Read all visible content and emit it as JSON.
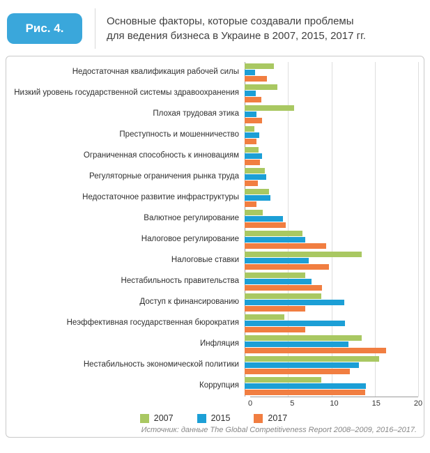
{
  "header": {
    "badge": "Рис. 4.",
    "title_line1": "Основные факторы, которые создавали проблемы",
    "title_line2": "для ведения бизнеса в Украине в 2007, 2015, 2017 гг."
  },
  "footer": {
    "source": "Источник: данные The Global Competitiveness Report 2008–2009, 2016–2017."
  },
  "colors": {
    "badge_blue": "#3aa7db",
    "gridline": "#dedede",
    "axis": "#9b9b9b"
  },
  "chart_data": {
    "type": "bar",
    "orientation": "horizontal",
    "title": "Основные факторы, которые создавали проблемы для ведения бизнеса в Украине в 2007, 2015, 2017 гг.",
    "categories": [
      "Недостаточная квалификация рабочей силы",
      "Низкий уровень государственной системы здравоохранения",
      "Плохая трудовая этика",
      "Преступность и мошенничество",
      "Ограниченная способность к инновациям",
      "Регуляторные ограничения рынка труда",
      "Недостаточное развитие инфраструктуры",
      "Валютное регулирование",
      "Налоговое регулирование",
      "Налоговые ставки",
      "Нестабильность правительства",
      "Доступ к финансированию",
      "Неэффективная государственная бюрократия",
      "Инфляция",
      "Нестабильность экономической политики",
      "Коррупция"
    ],
    "series": [
      {
        "name": "2007",
        "color": "#a9c862",
        "values": [
          3.4,
          3.8,
          5.7,
          1.1,
          1.6,
          2.3,
          2.8,
          2.1,
          6.7,
          13.5,
          7.0,
          8.8,
          4.6,
          13.5,
          15.5,
          8.8
        ]
      },
      {
        "name": "2015",
        "color": "#1c9fd6",
        "values": [
          1.2,
          1.3,
          1.4,
          1.7,
          2.0,
          2.5,
          3.0,
          4.4,
          7.0,
          7.4,
          7.7,
          11.5,
          11.6,
          12.0,
          13.2,
          14.0
        ]
      },
      {
        "name": "2017",
        "color": "#f17e41",
        "values": [
          2.6,
          1.9,
          2.0,
          1.4,
          1.8,
          1.5,
          1.4,
          4.7,
          9.4,
          9.7,
          8.9,
          7.0,
          7.0,
          16.3,
          12.1,
          13.9
        ]
      }
    ],
    "xlim": [
      0,
      20
    ],
    "xticks": [
      0,
      5,
      10,
      15,
      20
    ],
    "grid": true,
    "legend_position": "bottom"
  }
}
